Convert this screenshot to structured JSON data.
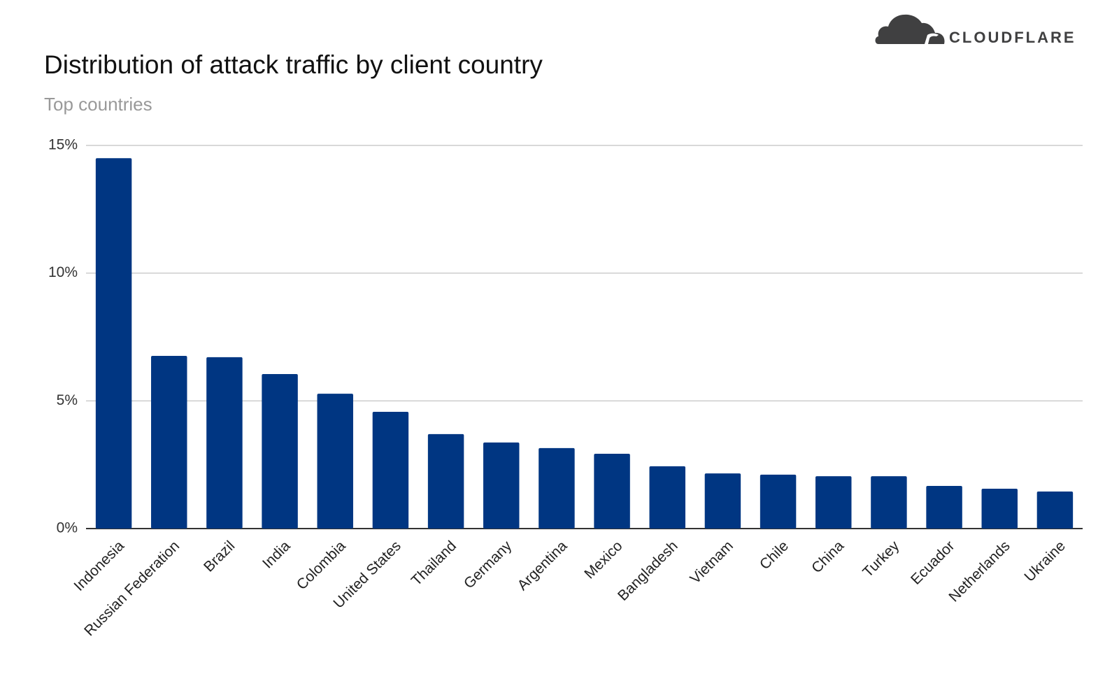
{
  "chart_data": {
    "type": "bar",
    "logo": "CLOUDFLARE",
    "title": "Distribution of attack traffic by client country",
    "subtitle": "Top countries",
    "categories": [
      "Indonesia",
      "Russian Federation",
      "Brazil",
      "India",
      "Colombia",
      "United States",
      "Thailand",
      "Germany",
      "Argentina",
      "Mexico",
      "Bangladesh",
      "Vietnam",
      "Chile",
      "China",
      "Turkey",
      "Ecuador",
      "Netherlands",
      "Ukraine"
    ],
    "values": [
      14.5,
      6.76,
      6.71,
      6.05,
      5.28,
      4.57,
      3.7,
      3.37,
      3.15,
      2.93,
      2.44,
      2.16,
      2.11,
      2.05,
      2.05,
      1.67,
      1.56,
      1.45
    ],
    "color": "#003682",
    "ylim": [
      0,
      15
    ],
    "yticks": [
      {
        "value": 0,
        "label": "0%"
      },
      {
        "value": 5,
        "label": "5%"
      },
      {
        "value": 10,
        "label": "10%"
      },
      {
        "value": 15,
        "label": "15%"
      }
    ],
    "grid": true
  }
}
